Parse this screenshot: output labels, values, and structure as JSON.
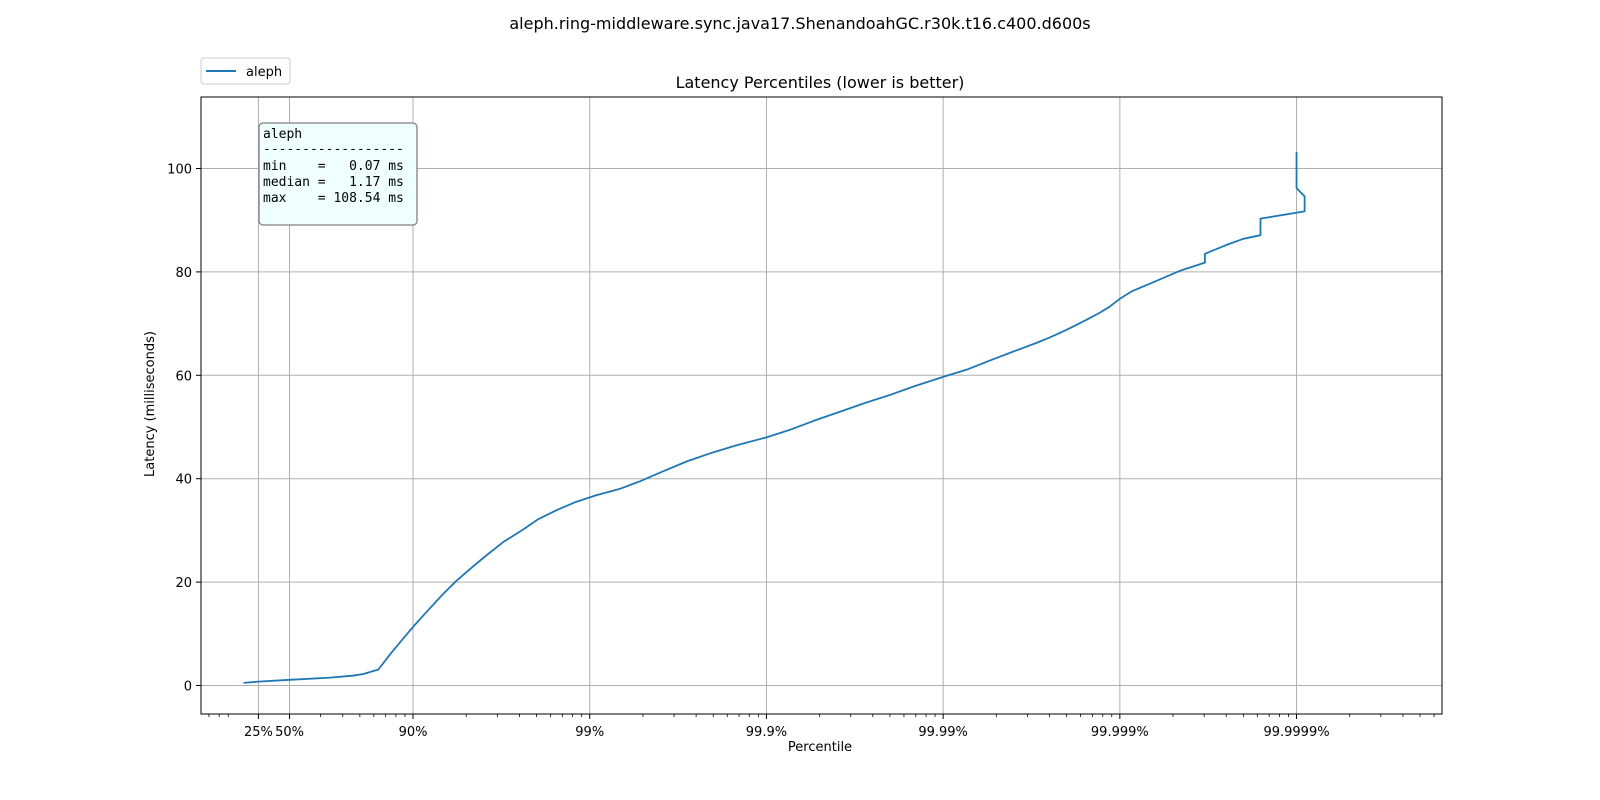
{
  "chart_data": {
    "type": "line",
    "suptitle": "aleph.ring-middleware.sync.java17.ShenandoahGC.r30k.t16.c400.d600s",
    "title": "Latency Percentiles (lower is better)",
    "xlabel": "Percentile",
    "ylabel": "Latency (milliseconds)",
    "x_scale": "log of 1/(1 - percentile)",
    "x_ticks": [
      "25%",
      "50%",
      "90%",
      "99%",
      "99.9%",
      "99.99%",
      "99.999%",
      "99.9999%"
    ],
    "x_tick_values": [
      25,
      50,
      90,
      99,
      99.9,
      99.99,
      99.999,
      99.9999
    ],
    "y_ticks": [
      0,
      20,
      40,
      60,
      80,
      100
    ],
    "ylim": [
      -5.3,
      114
    ],
    "grid": true,
    "legend": {
      "placement": "top-left",
      "entries": [
        "aleph"
      ]
    },
    "series": [
      {
        "name": "aleph",
        "color": "#1f77b4",
        "points": [
          [
            9,
            0.5
          ],
          [
            25,
            0.75
          ],
          [
            50,
            1.1
          ],
          [
            70,
            1.5
          ],
          [
            78,
            1.9
          ],
          [
            80.8,
            2.2
          ],
          [
            84.3,
            3.1
          ],
          [
            86.5,
            6.0
          ],
          [
            88.7,
            9.2
          ],
          [
            90.1,
            11.5
          ],
          [
            91.7,
            14.4
          ],
          [
            93.2,
            17.6
          ],
          [
            94.3,
            20.2
          ],
          [
            95.3,
            22.7
          ],
          [
            96.1,
            25.0
          ],
          [
            96.9,
            27.7
          ],
          [
            97.6,
            30.1
          ],
          [
            98.05,
            32.2
          ],
          [
            98.48,
            34.0
          ],
          [
            98.8,
            35.5
          ],
          [
            99.08,
            36.8
          ],
          [
            99.32,
            38.0
          ],
          [
            99.48,
            39.5
          ],
          [
            99.62,
            41.5
          ],
          [
            99.72,
            43.4
          ],
          [
            99.8,
            45.1
          ],
          [
            99.85,
            46.4
          ],
          [
            99.9,
            48.0
          ],
          [
            99.927,
            49.5
          ],
          [
            99.947,
            51.3
          ],
          [
            99.962,
            53.0
          ],
          [
            99.972,
            54.6
          ],
          [
            99.98,
            56.2
          ],
          [
            99.9855,
            57.9
          ],
          [
            99.99,
            59.7
          ],
          [
            99.9928,
            61.2
          ],
          [
            99.9946,
            62.9
          ],
          [
            99.996,
            64.6
          ],
          [
            99.997,
            66.2
          ],
          [
            99.9975,
            67.3
          ],
          [
            99.998,
            68.8
          ],
          [
            99.99845,
            70.7
          ],
          [
            99.9987,
            72.1
          ],
          [
            99.99885,
            73.2
          ],
          [
            99.999,
            74.8
          ],
          [
            99.99915,
            76.3
          ],
          [
            99.9993,
            77.5
          ],
          [
            99.99943,
            78.8
          ],
          [
            99.99955,
            80.3
          ],
          [
            99.99967,
            81.8
          ],
          [
            99.99967,
            83.5
          ],
          [
            99.99975,
            85.2
          ],
          [
            99.9998,
            86.4
          ],
          [
            99.99984,
            87.1
          ],
          [
            99.99984,
            90.3
          ],
          [
            99.99991,
            91.7
          ],
          [
            99.99991,
            94.6
          ],
          [
            99.9999,
            96.2
          ],
          [
            99.9999,
            103.2
          ]
        ]
      }
    ],
    "annotation": {
      "heading": "aleph",
      "separator": "------------------",
      "lines": [
        "min    =   0.07 ms",
        "median =   1.17 ms",
        "max    = 108.54 ms"
      ]
    }
  }
}
